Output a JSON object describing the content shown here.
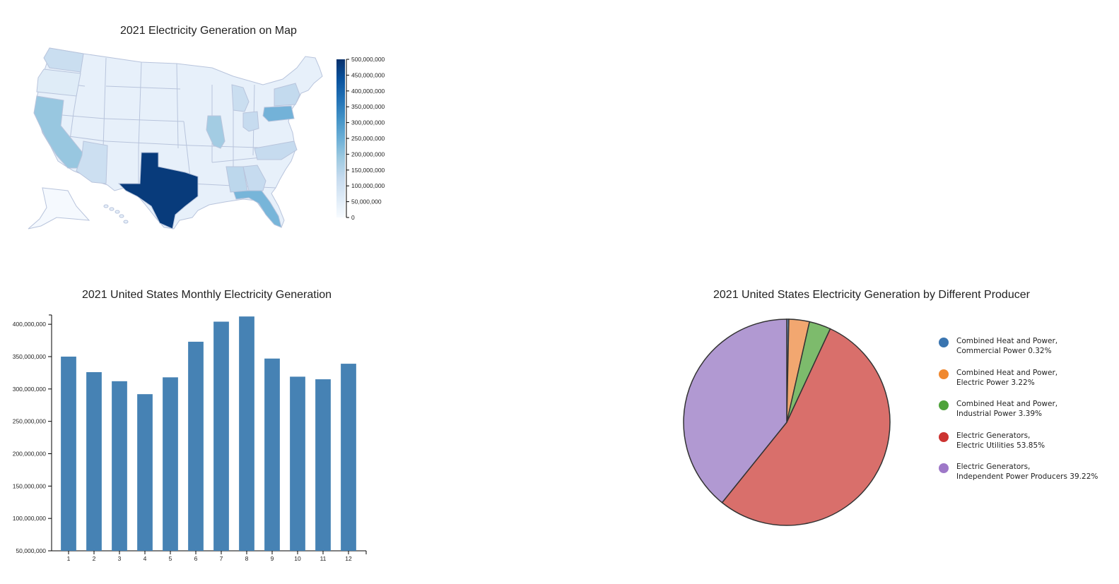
{
  "chart_data": [
    {
      "type": "choropleth-map",
      "title": "2021 Electricity Generation on Map",
      "colorbar": {
        "min": 0,
        "max": 500000000,
        "ticks": [
          "500,000,000",
          "450,000,000",
          "400,000,000",
          "350,000,000",
          "300,000,000",
          "250,000,000",
          "200,000,000",
          "150,000,000",
          "100,000,000",
          "50,000,000",
          "0"
        ],
        "color_low": "#f7fbff",
        "color_high": "#08306b"
      },
      "regions": [
        {
          "name": "WA",
          "value": 115000000
        },
        {
          "name": "OR",
          "value": 60000000
        },
        {
          "name": "CA",
          "value": 195000000
        },
        {
          "name": "TX",
          "value": 480000000
        },
        {
          "name": "FL",
          "value": 235000000
        },
        {
          "name": "PA",
          "value": 240000000
        },
        {
          "name": "IL",
          "value": 180000000
        },
        {
          "name": "NY",
          "value": 130000000
        },
        {
          "name": "AZ",
          "value": 110000000
        },
        {
          "name": "GA",
          "value": 125000000
        },
        {
          "name": "AL",
          "value": 140000000
        },
        {
          "name": "OH",
          "value": 125000000
        },
        {
          "name": "NC",
          "value": 125000000
        },
        {
          "name": "MI",
          "value": 115000000
        },
        {
          "name": "AK",
          "value": 6000000
        }
      ]
    },
    {
      "type": "bar",
      "title": "2021 United States Monthly Electricity Generation",
      "categories": [
        "1",
        "2",
        "3",
        "4",
        "5",
        "6",
        "7",
        "8",
        "9",
        "10",
        "11",
        "12"
      ],
      "values": [
        350000000,
        326000000,
        312000000,
        292000000,
        318000000,
        373000000,
        404000000,
        412000000,
        347000000,
        319000000,
        315000000,
        339000000
      ],
      "ylim": [
        50000000,
        410000000
      ],
      "yticks": [
        "400,000,000",
        "350,000,000",
        "300,000,000",
        "250,000,000",
        "200,000,000",
        "150,000,000",
        "100,000,000",
        "50,000,000"
      ],
      "bar_color": "#4682b4"
    },
    {
      "type": "pie",
      "title": "2021 United States Electricity Generation by Different Producer",
      "slices": [
        {
          "line1": "Combined Heat and Power,",
          "line2": "Commercial Power 0.32%",
          "value": 0.32,
          "color": "#6a8fc4",
          "legend_color": "#3a75b0"
        },
        {
          "line1": "Combined Heat and Power,",
          "line2": "Electric Power 3.22%",
          "value": 3.22,
          "color": "#f2a770",
          "legend_color": "#f0882e"
        },
        {
          "line1": "Combined Heat and Power,",
          "line2": "Industrial Power 3.39%",
          "value": 3.39,
          "color": "#7dbb6c",
          "legend_color": "#4ea23a"
        },
        {
          "line1": "Electric Generators,",
          "line2": "Electric Utilities 53.85%",
          "value": 53.85,
          "color": "#d96f6b",
          "legend_color": "#cc3331"
        },
        {
          "line1": "Electric Generators,",
          "line2": "Independent Power Producers 39.22%",
          "value": 39.22,
          "color": "#b199d2",
          "legend_color": "#9e78c8"
        }
      ]
    }
  ]
}
